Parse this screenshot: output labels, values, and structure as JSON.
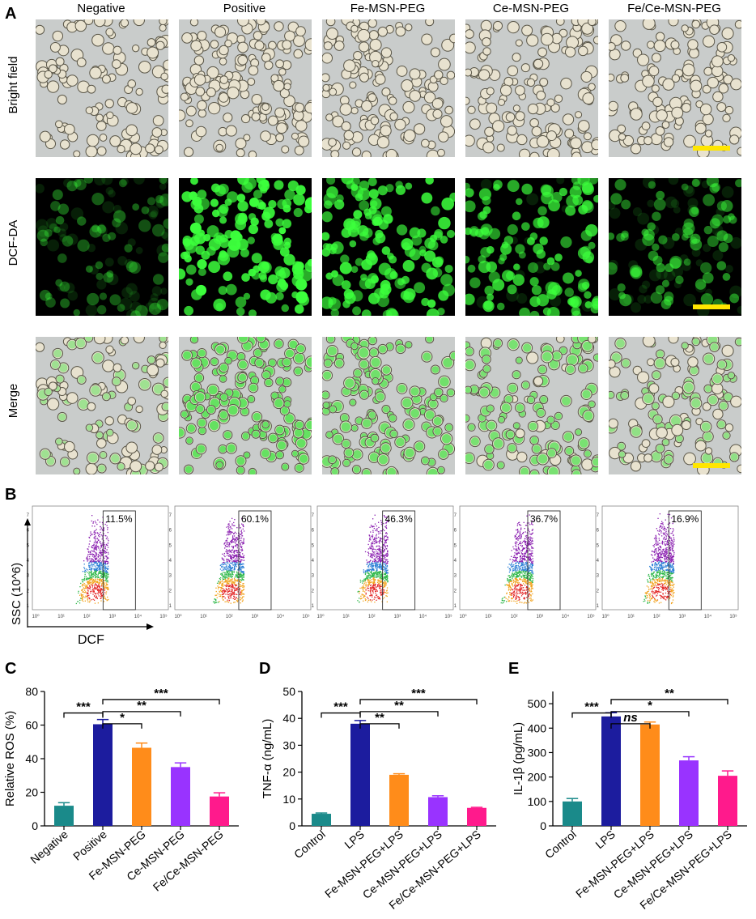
{
  "panel_labels": {
    "A": "A",
    "B": "B",
    "C": "C",
    "D": "D",
    "E": "E"
  },
  "microscopy": {
    "columns": [
      "Negative",
      "Positive",
      "Fe-MSN-PEG",
      "Ce-MSN-PEG",
      "Fe/Ce-MSN-PEG"
    ],
    "rows": [
      "Bright field",
      "DCF-DA",
      "Merge"
    ],
    "fluorescence_intensity": [
      0.25,
      1.0,
      0.85,
      0.75,
      0.45
    ],
    "scale_bar_color": "#ffe600",
    "fluor_color": "#3cff3c"
  },
  "flow": {
    "ylabel": "SSC (10^6)",
    "xlabel": "DCF",
    "yticks": [
      "7",
      "6",
      "5",
      "4",
      "3",
      "2",
      "1"
    ],
    "xticks": [
      "10⁰",
      "10¹",
      "10²",
      "10³",
      "10⁴",
      "10⁵"
    ],
    "percentages": [
      "11.5%",
      "60.1%",
      "46.3%",
      "36.7%",
      "16.9%"
    ]
  },
  "chart_data": [
    {
      "type": "bar",
      "panel": "C",
      "ylabel": "Relative ROS (%)",
      "categories": [
        "Negative",
        "Positive",
        "Fe-MSN-PEG",
        "Ce-MSN-PEG",
        "Fe/Ce-MSN-PEG"
      ],
      "values": [
        12,
        60.5,
        46.5,
        35,
        17.5
      ],
      "errors": [
        1.8,
        2.8,
        2.8,
        2.5,
        2.2
      ],
      "colors": [
        "#1a8a8a",
        "#1c1c9e",
        "#ff8c1a",
        "#9933ff",
        "#ff1a8c"
      ],
      "ylim": [
        0,
        80
      ],
      "yticks": [
        0,
        20,
        40,
        60,
        80
      ],
      "significance": [
        {
          "from": 0,
          "to": 1,
          "label": "***"
        },
        {
          "from": 1,
          "to": 2,
          "label": "*"
        },
        {
          "from": 1,
          "to": 3,
          "label": "**"
        },
        {
          "from": 1,
          "to": 4,
          "label": "***"
        }
      ]
    },
    {
      "type": "bar",
      "panel": "D",
      "ylabel": "TNF-α (ng/mL)",
      "categories": [
        "Control",
        "LPS",
        "Fe-MSN-PEG+LPS",
        "Ce-MSN-PEG+LPS",
        "Fe/Ce-MSN-PEG+LPS"
      ],
      "values": [
        4.5,
        38,
        19,
        10.7,
        6.7
      ],
      "errors": [
        0.3,
        1.2,
        0.4,
        0.5,
        0.2
      ],
      "colors": [
        "#1a8a8a",
        "#1c1c9e",
        "#ff8c1a",
        "#9933ff",
        "#ff1a8c"
      ],
      "ylim": [
        0,
        50
      ],
      "yticks": [
        0,
        10,
        20,
        30,
        40,
        50
      ],
      "significance": [
        {
          "from": 0,
          "to": 1,
          "label": "***"
        },
        {
          "from": 1,
          "to": 2,
          "label": "**"
        },
        {
          "from": 1,
          "to": 3,
          "label": "**"
        },
        {
          "from": 1,
          "to": 4,
          "label": "***"
        }
      ]
    },
    {
      "type": "bar",
      "panel": "E",
      "ylabel": "IL-1β (pg/mL)",
      "categories": [
        "Control",
        "LPS",
        "Fe-MSN-PEG+LPS",
        "Ce-MSN-PEG+LPS",
        "Fe/Ce-MSN-PEG+LPS"
      ],
      "values": [
        100,
        448,
        415,
        268,
        205
      ],
      "errors": [
        12,
        15,
        10,
        15,
        20
      ],
      "colors": [
        "#1a8a8a",
        "#1c1c9e",
        "#ff8c1a",
        "#9933ff",
        "#ff1a8c"
      ],
      "ylim": [
        0,
        550
      ],
      "yticks": [
        0,
        100,
        200,
        300,
        400,
        500
      ],
      "significance": [
        {
          "from": 0,
          "to": 1,
          "label": "***"
        },
        {
          "from": 1,
          "to": 2,
          "label": "ns"
        },
        {
          "from": 1,
          "to": 3,
          "label": "*"
        },
        {
          "from": 1,
          "to": 4,
          "label": "**"
        }
      ]
    }
  ]
}
